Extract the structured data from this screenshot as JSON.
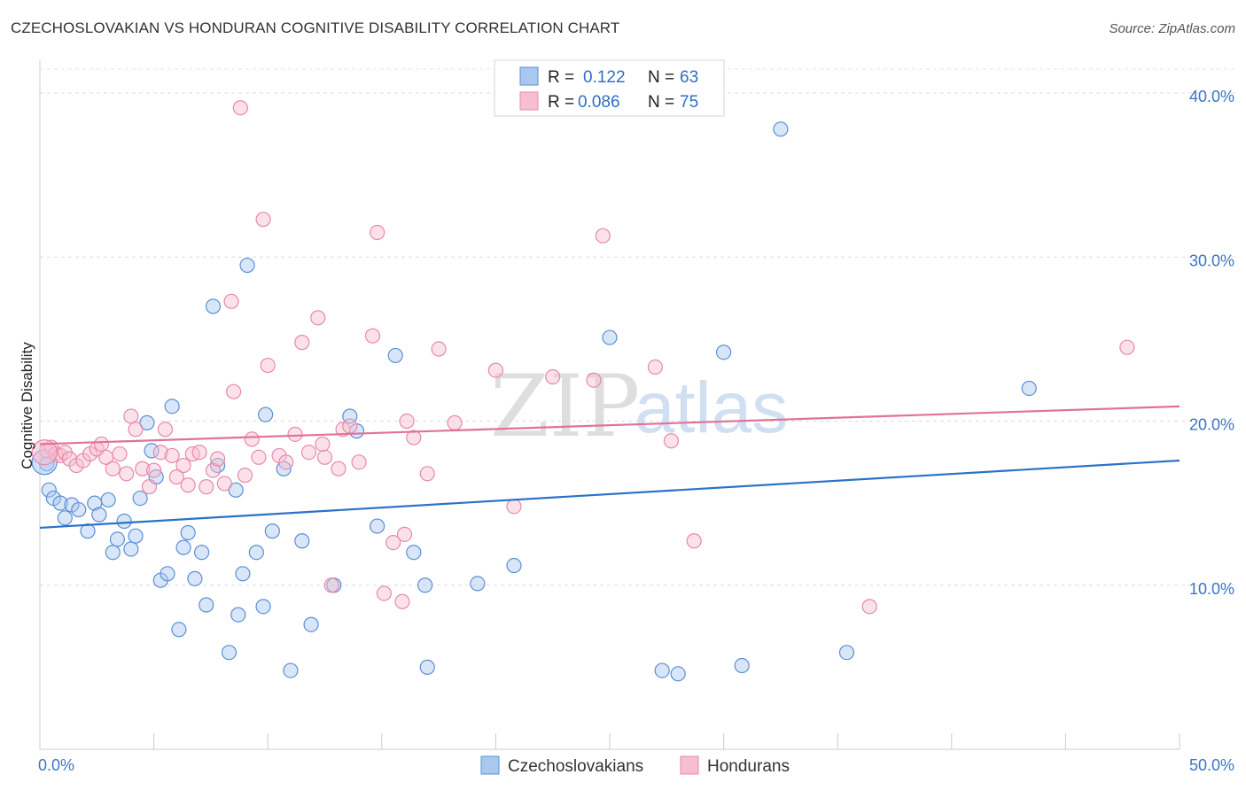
{
  "header": {
    "title": "CZECHOSLOVAKIAN VS HONDURAN COGNITIVE DISABILITY CORRELATION CHART",
    "source": "Source: ZipAtlas.com"
  },
  "watermark": {
    "zip": "ZIP",
    "atlas": "atlas"
  },
  "legend": {
    "rows": [
      {
        "r_label": "R =",
        "r_value": "0.122",
        "n_label": "N =",
        "n_value": "63"
      },
      {
        "r_label": "R =",
        "r_value": "0.086",
        "n_label": "N =",
        "n_value": "75"
      }
    ]
  },
  "chart_data": {
    "type": "scatter",
    "title": "CZECHOSLOVAKIAN VS HONDURAN COGNITIVE DISABILITY CORRELATION CHART",
    "xlabel": "",
    "ylabel": "Cognitive Disability",
    "xlim": [
      0,
      50
    ],
    "ylim": [
      0,
      42
    ],
    "x_tick_labels": [
      "0.0%",
      "50.0%"
    ],
    "y_ticks": [
      10,
      20,
      30,
      40
    ],
    "y_tick_labels": [
      "10.0%",
      "20.0%",
      "30.0%",
      "40.0%"
    ],
    "grid": true,
    "legend_position": "top-center",
    "colors": {
      "czechoslovakians_fill": "#a9c8ef",
      "czechoslovakians_stroke": "#5b8fd6",
      "czechoslovakians_line": "#2a72c8",
      "hondurans_fill": "#f7bdd0",
      "hondurans_stroke": "#e889a8",
      "hondurans_line": "#e0729a",
      "axis_text": "#3a76c4"
    },
    "series": [
      {
        "name": "Czechoslovakians",
        "r": 0.122,
        "n": 63,
        "trend": {
          "x": [
            0,
            50
          ],
          "y": [
            13.5,
            17.6
          ]
        },
        "points": [
          [
            0.3,
            17.4
          ],
          [
            0.4,
            15.8
          ],
          [
            0.6,
            15.3
          ],
          [
            0.9,
            15.0
          ],
          [
            1.1,
            14.1
          ],
          [
            1.4,
            14.9
          ],
          [
            1.7,
            14.6
          ],
          [
            2.1,
            13.3
          ],
          [
            2.4,
            15.0
          ],
          [
            2.6,
            14.3
          ],
          [
            3.0,
            15.2
          ],
          [
            3.2,
            12.0
          ],
          [
            3.4,
            12.8
          ],
          [
            3.7,
            13.9
          ],
          [
            4.0,
            12.2
          ],
          [
            4.2,
            13.0
          ],
          [
            4.4,
            15.3
          ],
          [
            4.7,
            19.9
          ],
          [
            4.9,
            18.2
          ],
          [
            5.1,
            16.6
          ],
          [
            5.3,
            10.3
          ],
          [
            5.6,
            10.7
          ],
          [
            5.8,
            20.9
          ],
          [
            6.1,
            7.3
          ],
          [
            6.3,
            12.3
          ],
          [
            6.5,
            13.2
          ],
          [
            6.8,
            10.4
          ],
          [
            7.1,
            12.0
          ],
          [
            7.3,
            8.8
          ],
          [
            7.6,
            27.0
          ],
          [
            7.8,
            17.3
          ],
          [
            8.3,
            5.9
          ],
          [
            8.6,
            15.8
          ],
          [
            8.7,
            8.2
          ],
          [
            8.9,
            10.7
          ],
          [
            9.1,
            29.5
          ],
          [
            9.5,
            12.0
          ],
          [
            9.8,
            8.7
          ],
          [
            9.9,
            20.4
          ],
          [
            10.2,
            13.3
          ],
          [
            10.7,
            17.1
          ],
          [
            11.0,
            4.8
          ],
          [
            11.5,
            12.7
          ],
          [
            11.9,
            7.6
          ],
          [
            12.9,
            10.0
          ],
          [
            13.6,
            20.3
          ],
          [
            13.9,
            19.4
          ],
          [
            14.8,
            13.6
          ],
          [
            15.6,
            24.0
          ],
          [
            16.4,
            12.0
          ],
          [
            16.9,
            10.0
          ],
          [
            17.0,
            5.0
          ],
          [
            19.2,
            10.1
          ],
          [
            20.8,
            11.2
          ],
          [
            25.0,
            25.1
          ],
          [
            27.3,
            4.8
          ],
          [
            28.0,
            4.6
          ],
          [
            30.0,
            24.2
          ],
          [
            30.8,
            5.1
          ],
          [
            32.5,
            37.8
          ],
          [
            35.4,
            5.9
          ],
          [
            43.4,
            22.0
          ],
          [
            0.2,
            17.5
          ]
        ]
      },
      {
        "name": "Hondurans",
        "r": 0.086,
        "n": 75,
        "trend": {
          "x": [
            0,
            50
          ],
          "y": [
            18.6,
            20.9
          ]
        },
        "points": [
          [
            0.3,
            18.2
          ],
          [
            0.5,
            18.4
          ],
          [
            0.7,
            18.0
          ],
          [
            0.9,
            17.9
          ],
          [
            1.1,
            18.1
          ],
          [
            1.3,
            17.7
          ],
          [
            1.6,
            17.3
          ],
          [
            1.9,
            17.6
          ],
          [
            2.2,
            18.0
          ],
          [
            2.5,
            18.3
          ],
          [
            2.7,
            18.6
          ],
          [
            2.9,
            17.8
          ],
          [
            3.2,
            17.1
          ],
          [
            3.5,
            18.0
          ],
          [
            3.8,
            16.8
          ],
          [
            4.0,
            20.3
          ],
          [
            4.2,
            19.5
          ],
          [
            4.5,
            17.1
          ],
          [
            4.8,
            16.0
          ],
          [
            5.0,
            17.0
          ],
          [
            5.3,
            18.1
          ],
          [
            5.5,
            19.5
          ],
          [
            5.8,
            17.9
          ],
          [
            6.0,
            16.6
          ],
          [
            6.3,
            17.3
          ],
          [
            6.5,
            16.1
          ],
          [
            6.7,
            18.0
          ],
          [
            7.0,
            18.1
          ],
          [
            7.3,
            16.0
          ],
          [
            7.6,
            17.0
          ],
          [
            7.8,
            17.7
          ],
          [
            8.1,
            16.2
          ],
          [
            8.4,
            27.3
          ],
          [
            8.5,
            21.8
          ],
          [
            8.8,
            39.1
          ],
          [
            9.0,
            16.7
          ],
          [
            9.3,
            18.9
          ],
          [
            9.6,
            17.8
          ],
          [
            9.8,
            32.3
          ],
          [
            10.0,
            23.4
          ],
          [
            10.5,
            17.9
          ],
          [
            10.8,
            17.5
          ],
          [
            11.2,
            19.2
          ],
          [
            11.5,
            24.8
          ],
          [
            11.8,
            18.1
          ],
          [
            12.2,
            26.3
          ],
          [
            12.5,
            17.8
          ],
          [
            12.8,
            10.0
          ],
          [
            13.1,
            17.1
          ],
          [
            13.3,
            19.5
          ],
          [
            13.6,
            19.7
          ],
          [
            14.0,
            17.5
          ],
          [
            14.6,
            25.2
          ],
          [
            14.8,
            31.5
          ],
          [
            15.1,
            9.5
          ],
          [
            15.5,
            12.6
          ],
          [
            15.9,
            9.0
          ],
          [
            16.0,
            13.1
          ],
          [
            16.4,
            19.0
          ],
          [
            17.0,
            16.8
          ],
          [
            17.5,
            24.4
          ],
          [
            18.2,
            19.9
          ],
          [
            20.0,
            23.1
          ],
          [
            20.8,
            14.8
          ],
          [
            22.5,
            22.7
          ],
          [
            24.3,
            22.5
          ],
          [
            24.7,
            31.3
          ],
          [
            27.0,
            23.3
          ],
          [
            27.7,
            18.8
          ],
          [
            28.7,
            12.7
          ],
          [
            36.4,
            8.7
          ],
          [
            47.7,
            24.5
          ],
          [
            12.4,
            18.6
          ],
          [
            16.1,
            20.0
          ],
          [
            0.2,
            18.1
          ]
        ]
      }
    ]
  },
  "bottom_legend": {
    "items": [
      {
        "label": "Czechoslovakians"
      },
      {
        "label": "Hondurans"
      }
    ]
  }
}
